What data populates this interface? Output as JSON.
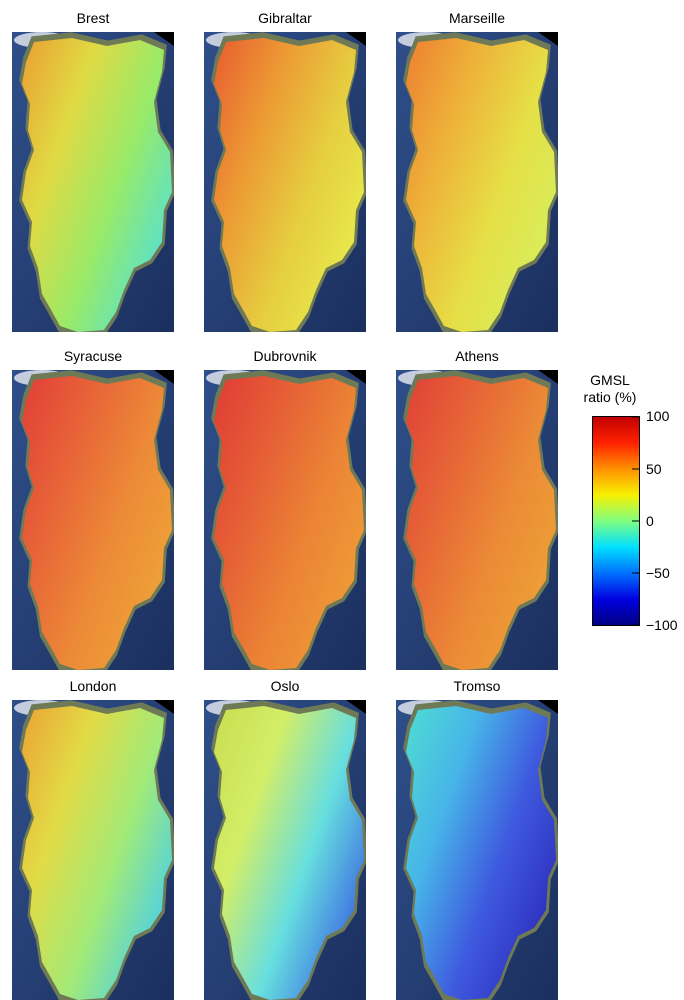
{
  "panels": [
    {
      "title": "Brest",
      "gradient": [
        "#f2a030",
        "#e6df42",
        "#9af06a",
        "#54e6d8"
      ]
    },
    {
      "title": "Gibraltar",
      "gradient": [
        "#ee5a2e",
        "#f39a32",
        "#ecd23e",
        "#eef24c"
      ]
    },
    {
      "title": "Marseille",
      "gradient": [
        "#f37f2f",
        "#f5b437",
        "#ece445",
        "#dcf55c"
      ]
    },
    {
      "title": "Syracuse",
      "gradient": [
        "#e83a36",
        "#ee6236",
        "#f38b35",
        "#f5a536"
      ]
    },
    {
      "title": "Dubrovnik",
      "gradient": [
        "#e63834",
        "#ec5c34",
        "#f28433",
        "#f59e35"
      ]
    },
    {
      "title": "Athens",
      "gradient": [
        "#e63d35",
        "#ed6335",
        "#f28b34",
        "#f4a335"
      ]
    },
    {
      "title": "London",
      "gradient": [
        "#f2a533",
        "#e8e044",
        "#a4f07a",
        "#48d4f0"
      ]
    },
    {
      "title": "Oslo",
      "gradient": [
        "#cfe24f",
        "#d8f468",
        "#66e4e6",
        "#3a6ae8"
      ]
    },
    {
      "title": "Tromso",
      "gradient": [
        "#4de2d8",
        "#45b8f0",
        "#3c58e6",
        "#2a2ac0"
      ]
    }
  ],
  "colorbar": {
    "title_line1": "GMSL",
    "title_line2": "ratio (%)",
    "ticks": [
      "100",
      "50",
      "0",
      "−50",
      "−100"
    ],
    "colors": [
      "#c00000",
      "#ff2000",
      "#ff9000",
      "#f8f000",
      "#80ff80",
      "#00e0ff",
      "#0070ff",
      "#0000e0",
      "#000080"
    ]
  },
  "colors": {
    "ocean": "#2f4f8a",
    "ocean_dark": "#1b2f5e",
    "coast_rim": "#6e7a56",
    "snow": "#e9eef2"
  }
}
